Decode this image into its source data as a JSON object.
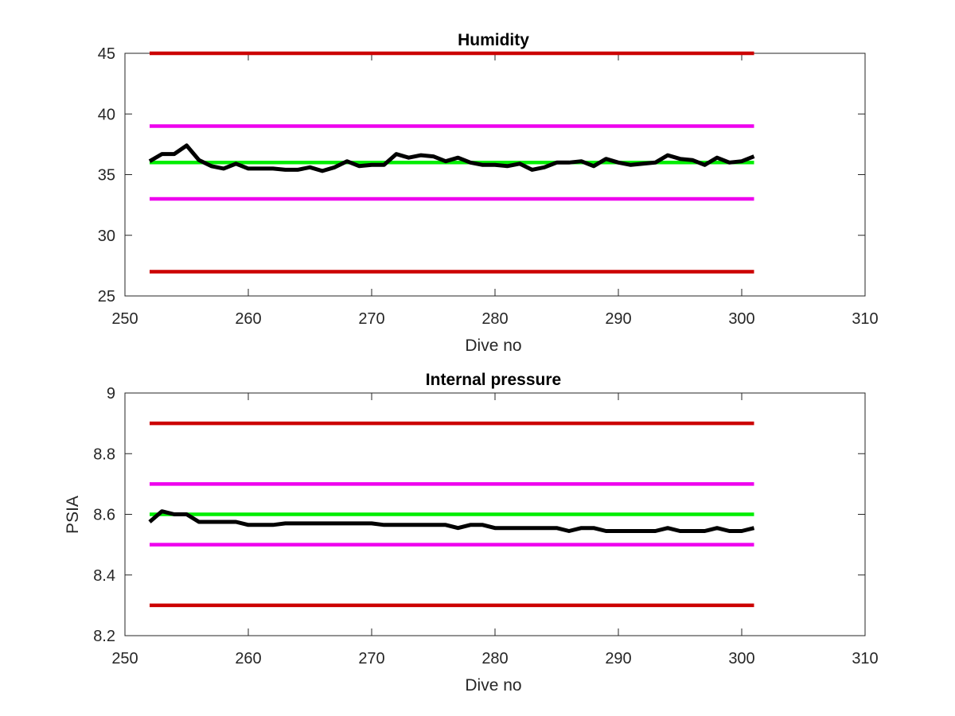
{
  "chart_data": [
    {
      "type": "line",
      "title": "Humidity",
      "xlabel": "Dive no",
      "ylabel": "",
      "xlim": [
        250,
        310
      ],
      "ylim": [
        25,
        45
      ],
      "xticks": [
        250,
        260,
        270,
        280,
        290,
        300,
        310
      ],
      "yticks": [
        25,
        30,
        35,
        40,
        45
      ],
      "xtick_labels": [
        "250",
        "260",
        "270",
        "280",
        "290",
        "300",
        "310"
      ],
      "ytick_labels": [
        "25",
        "30",
        "35",
        "40",
        "45"
      ],
      "grid": false,
      "series": [
        {
          "color": "#cc0000",
          "x": [
            252,
            301
          ],
          "y": [
            45,
            45
          ]
        },
        {
          "color": "#ee00ee",
          "x": [
            252,
            301
          ],
          "y": [
            39,
            39
          ]
        },
        {
          "color": "#00ee00",
          "x": [
            252,
            301
          ],
          "y": [
            36,
            36
          ]
        },
        {
          "color": "#ee00ee",
          "x": [
            252,
            301
          ],
          "y": [
            33,
            33
          ]
        },
        {
          "color": "#cc0000",
          "x": [
            252,
            301
          ],
          "y": [
            27,
            27
          ]
        },
        {
          "color": "#000000",
          "x": [
            252,
            253,
            254,
            255,
            256,
            257,
            258,
            259,
            260,
            261,
            262,
            263,
            264,
            265,
            266,
            267,
            268,
            269,
            270,
            271,
            272,
            273,
            274,
            275,
            276,
            277,
            278,
            279,
            280,
            281,
            282,
            283,
            284,
            285,
            286,
            287,
            288,
            289,
            290,
            291,
            292,
            293,
            294,
            295,
            296,
            297,
            298,
            299,
            300,
            301
          ],
          "y": [
            36.1,
            36.7,
            36.7,
            37.4,
            36.2,
            35.7,
            35.5,
            35.9,
            35.5,
            35.5,
            35.5,
            35.4,
            35.4,
            35.6,
            35.3,
            35.6,
            36.1,
            35.7,
            35.8,
            35.8,
            36.7,
            36.4,
            36.6,
            36.5,
            36.1,
            36.4,
            36.0,
            35.8,
            35.8,
            35.7,
            35.9,
            35.4,
            35.6,
            36.0,
            36.0,
            36.1,
            35.7,
            36.3,
            36.0,
            35.8,
            35.9,
            36.0,
            36.6,
            36.3,
            36.2,
            35.8,
            36.4,
            36.0,
            36.1,
            36.5
          ]
        }
      ]
    },
    {
      "type": "line",
      "title": "Internal pressure",
      "xlabel": "Dive no",
      "ylabel": "PSIA",
      "xlim": [
        250,
        310
      ],
      "ylim": [
        8.2,
        9
      ],
      "xticks": [
        250,
        260,
        270,
        280,
        290,
        300,
        310
      ],
      "yticks": [
        8.2,
        8.4,
        8.6,
        8.8,
        9
      ],
      "xtick_labels": [
        "250",
        "260",
        "270",
        "280",
        "290",
        "300",
        "310"
      ],
      "ytick_labels": [
        "8.2",
        "8.4",
        "8.6",
        "8.8",
        "9"
      ],
      "grid": false,
      "series": [
        {
          "color": "#cc0000",
          "x": [
            252,
            301
          ],
          "y": [
            8.9,
            8.9
          ]
        },
        {
          "color": "#ee00ee",
          "x": [
            252,
            301
          ],
          "y": [
            8.7,
            8.7
          ]
        },
        {
          "color": "#00ee00",
          "x": [
            252,
            301
          ],
          "y": [
            8.6,
            8.6
          ]
        },
        {
          "color": "#ee00ee",
          "x": [
            252,
            301
          ],
          "y": [
            8.5,
            8.5
          ]
        },
        {
          "color": "#cc0000",
          "x": [
            252,
            301
          ],
          "y": [
            8.3,
            8.3
          ]
        },
        {
          "color": "#000000",
          "x": [
            252,
            253,
            254,
            255,
            256,
            257,
            258,
            259,
            260,
            261,
            262,
            263,
            264,
            265,
            266,
            267,
            268,
            269,
            270,
            271,
            272,
            273,
            274,
            275,
            276,
            277,
            278,
            279,
            280,
            281,
            282,
            283,
            284,
            285,
            286,
            287,
            288,
            289,
            290,
            291,
            292,
            293,
            294,
            295,
            296,
            297,
            298,
            299,
            300,
            301
          ],
          "y": [
            8.575,
            8.61,
            8.6,
            8.6,
            8.575,
            8.575,
            8.575,
            8.575,
            8.565,
            8.565,
            8.565,
            8.57,
            8.57,
            8.57,
            8.57,
            8.57,
            8.57,
            8.57,
            8.57,
            8.565,
            8.565,
            8.565,
            8.565,
            8.565,
            8.565,
            8.555,
            8.565,
            8.565,
            8.555,
            8.555,
            8.555,
            8.555,
            8.555,
            8.555,
            8.545,
            8.555,
            8.555,
            8.545,
            8.545,
            8.545,
            8.545,
            8.545,
            8.555,
            8.545,
            8.545,
            8.545,
            8.555,
            8.545,
            8.545,
            8.555
          ]
        }
      ]
    }
  ]
}
